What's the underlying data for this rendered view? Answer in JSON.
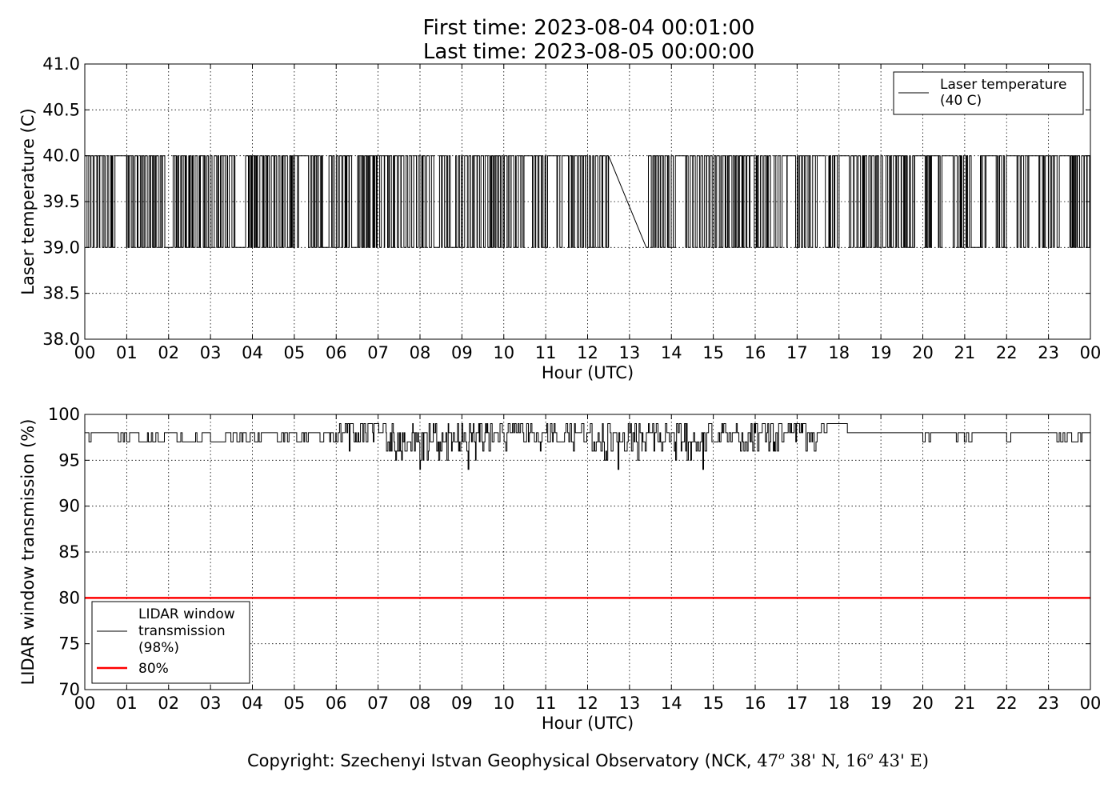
{
  "header": {
    "line1": "First time: 2023-08-04 00:01:00",
    "line2": "Last time: 2023-08-05 00:00:00"
  },
  "footer": {
    "copyright_prefix": "Copyright: Szechenyi Istvan Geophysical Observatory (NCK, ",
    "lat_deg": "47",
    "lat_min": " 38' N, ",
    "lon_deg": "16",
    "lon_min": " 43' E)",
    "degree_mark": "o"
  },
  "chart_data": [
    {
      "type": "line",
      "xlabel": "Hour (UTC)",
      "ylabel": "Laser temperature (C)",
      "xlim": [
        0,
        24
      ],
      "ylim": [
        38.0,
        41.0
      ],
      "xticks": [
        0,
        1,
        2,
        3,
        4,
        5,
        6,
        7,
        8,
        9,
        10,
        11,
        12,
        13,
        14,
        15,
        16,
        17,
        18,
        19,
        20,
        21,
        22,
        23,
        24
      ],
      "xtick_labels": [
        "00",
        "01",
        "02",
        "03",
        "04",
        "05",
        "06",
        "07",
        "08",
        "09",
        "10",
        "11",
        "12",
        "13",
        "14",
        "15",
        "16",
        "17",
        "18",
        "19",
        "20",
        "21",
        "22",
        "23",
        "00"
      ],
      "yticks": [
        38.0,
        38.5,
        39.0,
        39.5,
        40.0,
        40.5,
        41.0
      ],
      "ytick_labels": [
        "38.0",
        "38.5",
        "39.0",
        "39.5",
        "40.0",
        "40.5",
        "41.0"
      ],
      "grid": true,
      "legend_position": "top-right",
      "line_color": "#000000",
      "series": [
        {
          "name": "Laser temperature\n(40 C)",
          "levels": [
            39.0,
            40.0
          ],
          "quiet_period": [
            12.5,
            13.4
          ],
          "quiet_value": 39.0,
          "description_values": "switches between 39.0 and 40.0"
        }
      ]
    },
    {
      "type": "line",
      "xlabel": "Hour (UTC)",
      "ylabel": "LIDAR window transmission (%)",
      "xlim": [
        0,
        24
      ],
      "ylim": [
        70,
        100
      ],
      "xticks": [
        0,
        1,
        2,
        3,
        4,
        5,
        6,
        7,
        8,
        9,
        10,
        11,
        12,
        13,
        14,
        15,
        16,
        17,
        18,
        19,
        20,
        21,
        22,
        23,
        24
      ],
      "xtick_labels": [
        "00",
        "01",
        "02",
        "03",
        "04",
        "05",
        "06",
        "07",
        "08",
        "09",
        "10",
        "11",
        "12",
        "13",
        "14",
        "15",
        "16",
        "17",
        "18",
        "19",
        "20",
        "21",
        "22",
        "23",
        "00"
      ],
      "yticks": [
        70,
        75,
        80,
        85,
        90,
        95,
        100
      ],
      "ytick_labels": [
        "70",
        "75",
        "80",
        "85",
        "90",
        "95",
        "100"
      ],
      "grid": true,
      "legend_position": "bottom-left",
      "line_color": "#000000",
      "threshold_color": "#ff0000",
      "series": [
        {
          "name": "LIDAR window\ntransmission\n(98%)",
          "baseline": 98,
          "min_observed": 94,
          "max_observed": 99
        },
        {
          "name": "80%",
          "value": 80
        }
      ]
    }
  ]
}
